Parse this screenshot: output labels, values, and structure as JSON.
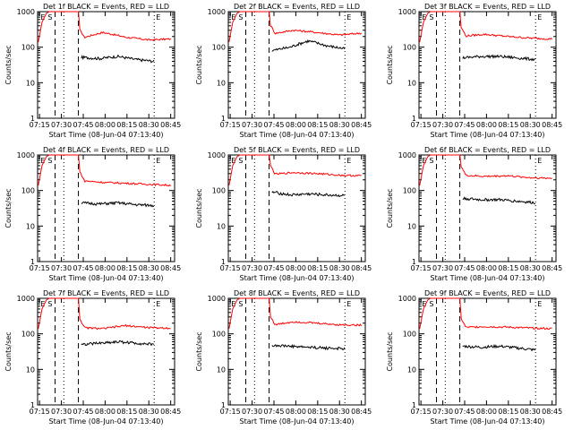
{
  "colors": {
    "events": "#000000",
    "lld": "#ff0000",
    "axis": "#000000"
  },
  "chart_data": [
    {
      "type": "line",
      "title": "Det 1f BLACK = Events, RED = LLD",
      "xlabel": "Start Time (08-Jun-04 07:13:40)",
      "ylabel": "Counts/sec",
      "x_ticks": [
        "07:15",
        "07:30",
        "07:45",
        "08:00",
        "08:15",
        "08:30",
        "08:45"
      ],
      "y_ticks": [
        "1",
        "10",
        "100",
        "1000"
      ],
      "xlim": [
        0,
        94
      ],
      "ylim": [
        1,
        1000
      ],
      "yscale": "log",
      "markers": [
        "E",
        "S",
        "E"
      ],
      "lld_level": [
        170,
        260,
        190,
        160,
        170
      ],
      "events_level": [
        52,
        48,
        55,
        45,
        40
      ]
    },
    {
      "type": "line",
      "title": "Det 2f BLACK = Events, RED = LLD",
      "xlabel": "Start Time (08-Jun-04 07:13:40)",
      "ylabel": "Counts/sec",
      "x_ticks": [
        "07:15",
        "07:30",
        "07:45",
        "08:00",
        "08:15",
        "08:30",
        "08:45"
      ],
      "y_ticks": [
        "1",
        "10",
        "100",
        "1000"
      ],
      "xlim": [
        0,
        94
      ],
      "ylim": [
        1,
        1000
      ],
      "yscale": "log",
      "markers": [
        "E",
        "S",
        "E"
      ],
      "lld_level": [
        230,
        300,
        260,
        220,
        250
      ],
      "events_level": [
        80,
        100,
        150,
        110,
        90
      ]
    },
    {
      "type": "line",
      "title": "Det 3f BLACK = Events, RED = LLD",
      "xlabel": "Start Time (08-Jun-04 07:13:40)",
      "ylabel": "Counts/sec",
      "x_ticks": [
        "07:15",
        "07:30",
        "07:45",
        "08:00",
        "08:15",
        "08:30",
        "08:45"
      ],
      "y_ticks": [
        "1",
        "10",
        "100",
        "1000"
      ],
      "xlim": [
        0,
        94
      ],
      "ylim": [
        1,
        1000
      ],
      "yscale": "log",
      "markers": [
        "E",
        "S",
        "E"
      ],
      "lld_level": [
        200,
        230,
        200,
        180,
        170
      ],
      "events_level": [
        50,
        55,
        55,
        50,
        45
      ]
    },
    {
      "type": "line",
      "title": "Det 4f BLACK = Events, RED = LLD",
      "xlabel": "Start Time (08-Jun-04 07:13:40)",
      "ylabel": "Counts/sec",
      "x_ticks": [
        "07:15",
        "07:30",
        "07:45",
        "08:00",
        "08:15",
        "08:30",
        "08:45"
      ],
      "y_ticks": [
        "1",
        "10",
        "100",
        "1000"
      ],
      "xlim": [
        0,
        94
      ],
      "ylim": [
        1,
        1000
      ],
      "yscale": "log",
      "markers": [
        "E",
        "S",
        "E"
      ],
      "lld_level": [
        190,
        170,
        160,
        150,
        140
      ],
      "events_level": [
        45,
        42,
        45,
        40,
        38
      ]
    },
    {
      "type": "line",
      "title": "Det 5f BLACK = Events, RED = LLD",
      "xlabel": "Start Time (08-Jun-04 07:13:40)",
      "ylabel": "Counts/sec",
      "x_ticks": [
        "07:15",
        "07:30",
        "07:45",
        "08:00",
        "08:15",
        "08:30",
        "08:45"
      ],
      "y_ticks": [
        "1",
        "10",
        "100",
        "1000"
      ],
      "xlim": [
        0,
        94
      ],
      "ylim": [
        1,
        1000
      ],
      "yscale": "log",
      "markers": [
        "E",
        "S",
        "E"
      ],
      "lld_level": [
        280,
        320,
        300,
        270,
        260
      ],
      "events_level": [
        90,
        75,
        80,
        75,
        72
      ]
    },
    {
      "type": "line",
      "title": "Det 6f BLACK = Events, RED = LLD",
      "xlabel": "Start Time (08-Jun-04 07:13:40)",
      "ylabel": "Counts/sec",
      "x_ticks": [
        "07:15",
        "07:30",
        "07:45",
        "08:00",
        "08:15",
        "08:30",
        "08:45"
      ],
      "y_ticks": [
        "1",
        "10",
        "100",
        "1000"
      ],
      "xlim": [
        0,
        94
      ],
      "ylim": [
        1,
        1000
      ],
      "yscale": "log",
      "markers": [
        "E",
        "S",
        "E"
      ],
      "lld_level": [
        270,
        250,
        260,
        230,
        220
      ],
      "events_level": [
        60,
        55,
        55,
        50,
        45
      ]
    },
    {
      "type": "line",
      "title": "Det 7f BLACK = Events, RED = LLD",
      "xlabel": "Start Time (08-Jun-04 07:13:40)",
      "ylabel": "Counts/sec",
      "x_ticks": [
        "07:15",
        "07:30",
        "07:45",
        "08:00",
        "08:15",
        "08:30",
        "08:45"
      ],
      "y_ticks": [
        "1",
        "10",
        "100",
        "1000"
      ],
      "xlim": [
        0,
        94
      ],
      "ylim": [
        1,
        1000
      ],
      "yscale": "log",
      "markers": [
        "E",
        "S",
        "E"
      ],
      "lld_level": [
        150,
        140,
        170,
        150,
        145
      ],
      "events_level": [
        50,
        55,
        60,
        55,
        50
      ]
    },
    {
      "type": "line",
      "title": "Det 8f BLACK = Events, RED = LLD",
      "xlabel": "Start Time (08-Jun-04 07:13:40)",
      "ylabel": "Counts/sec",
      "x_ticks": [
        "07:15",
        "07:30",
        "07:45",
        "08:00",
        "08:15",
        "08:30",
        "08:45"
      ],
      "y_ticks": [
        "1",
        "10",
        "100",
        "1000"
      ],
      "xlim": [
        0,
        94
      ],
      "ylim": [
        1,
        1000
      ],
      "yscale": "log",
      "markers": [
        "E",
        "S",
        "E"
      ],
      "lld_level": [
        170,
        220,
        200,
        180,
        175
      ],
      "events_level": [
        48,
        45,
        42,
        40,
        38
      ]
    },
    {
      "type": "line",
      "title": "Det 9f BLACK = Events, RED = LLD",
      "xlabel": "Start Time (08-Jun-04 07:13:40)",
      "ylabel": "Counts/sec",
      "x_ticks": [
        "07:15",
        "07:30",
        "07:45",
        "08:00",
        "08:15",
        "08:30",
        "08:45"
      ],
      "y_ticks": [
        "1",
        "10",
        "100",
        "1000"
      ],
      "xlim": [
        0,
        94
      ],
      "ylim": [
        1,
        1000
      ],
      "yscale": "log",
      "markers": [
        "E",
        "S",
        "E"
      ],
      "lld_level": [
        150,
        160,
        155,
        145,
        140
      ],
      "events_level": [
        45,
        42,
        45,
        40,
        35
      ]
    }
  ]
}
